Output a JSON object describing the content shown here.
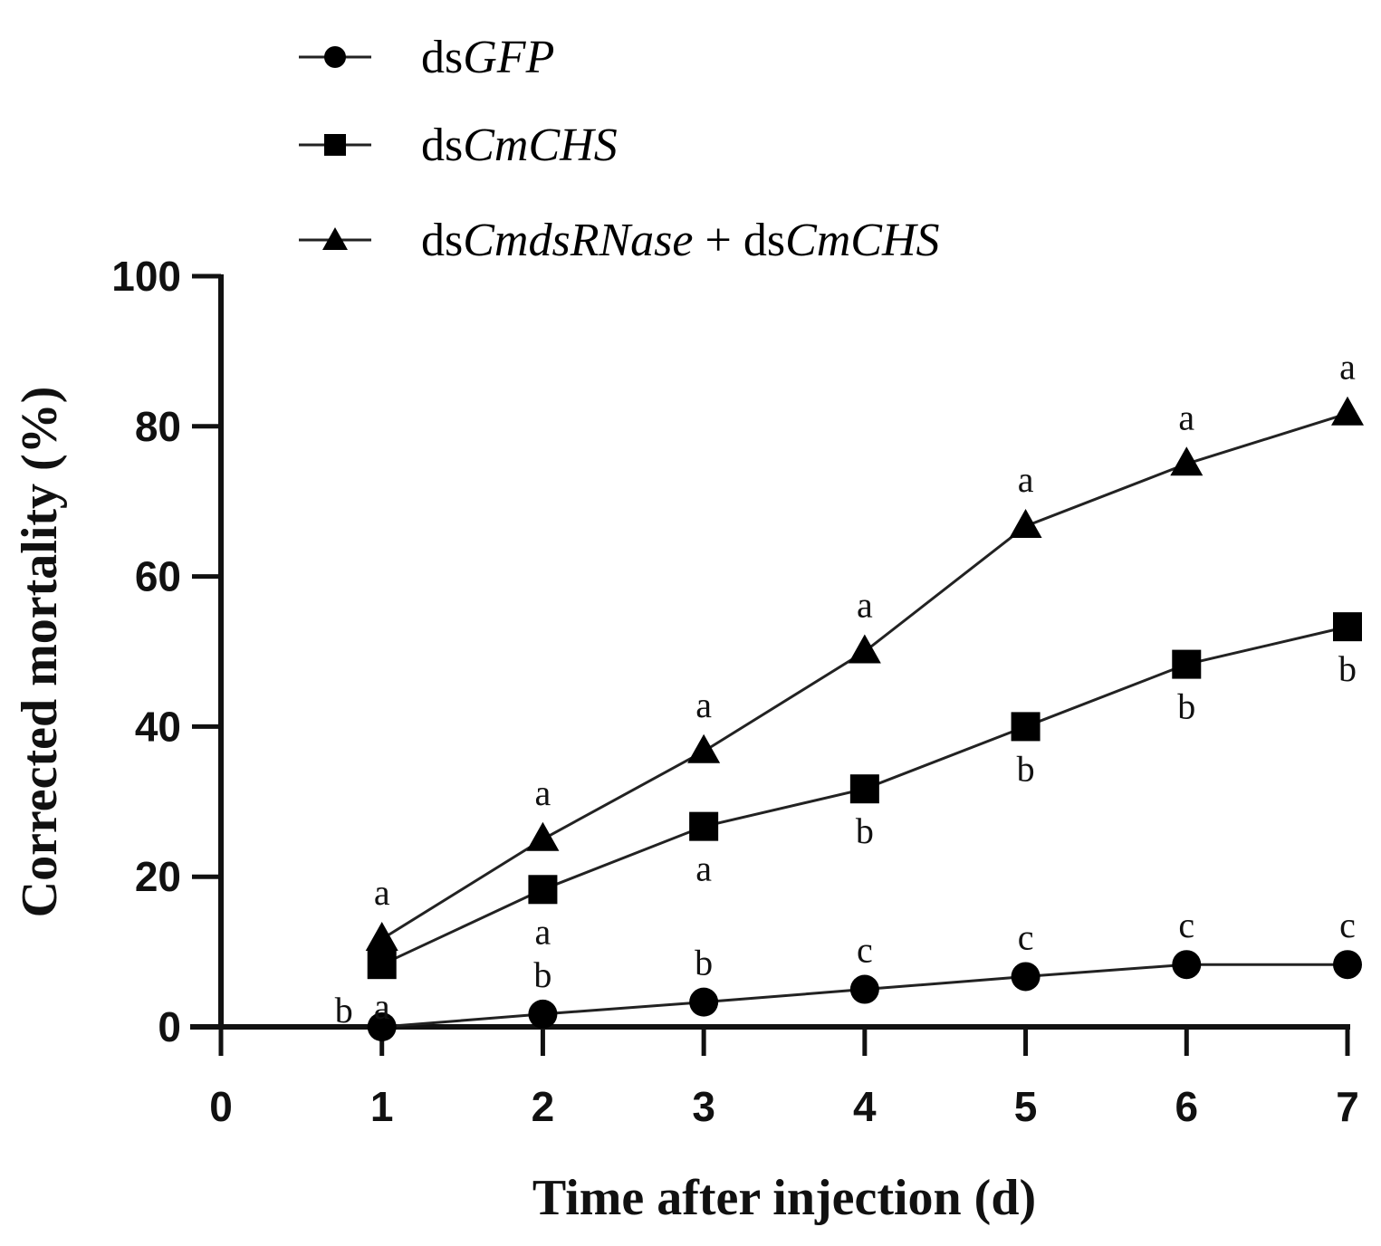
{
  "chart_data": {
    "type": "line",
    "xlabel": "Time after injection (d)",
    "ylabel": "Corrected mortality (%)",
    "xlim": [
      0,
      7
    ],
    "ylim": [
      0,
      100
    ],
    "xticks": [
      "0",
      "1",
      "2",
      "3",
      "4",
      "5",
      "6",
      "7"
    ],
    "yticks": [
      "0",
      "20",
      "40",
      "60",
      "80",
      "100"
    ],
    "grid": false,
    "legend_position": "top-left",
    "x": [
      1,
      2,
      3,
      4,
      5,
      6,
      7
    ],
    "series": [
      {
        "name_prefix": "ds",
        "name_italic": "GFP",
        "name": "dsGFP",
        "marker": "circle",
        "values": [
          0,
          1.7,
          3.3,
          5,
          6.7,
          8.3,
          8.3
        ],
        "significance": [
          "b",
          "b",
          "b",
          "c",
          "c",
          "c",
          "c"
        ]
      },
      {
        "name_prefix": "ds",
        "name_italic": "CmCHS",
        "name": "dsCmCHS",
        "marker": "square",
        "values": [
          8.3,
          18.3,
          26.7,
          31.7,
          40,
          48.3,
          53.3
        ],
        "significance": [
          "a",
          "a",
          "a",
          "b",
          "b",
          "b",
          "b"
        ]
      },
      {
        "name_prefix": "ds",
        "name_italic": "CmdsRNase",
        "name_mid": " + ds",
        "name_italic2": "CmCHS",
        "name": "dsCmdsRNase + dsCmCHS",
        "marker": "triangle",
        "values": [
          11.7,
          25,
          36.7,
          50,
          66.7,
          75,
          81.7
        ],
        "significance": [
          "a",
          "a",
          "a",
          "a",
          "a",
          "a",
          "a"
        ]
      }
    ]
  }
}
